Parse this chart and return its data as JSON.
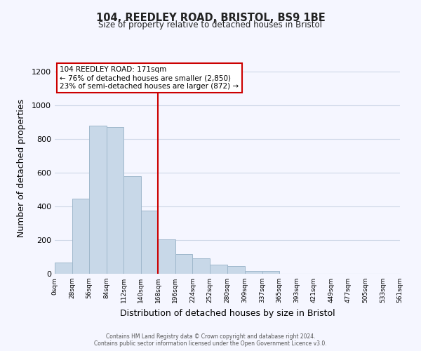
{
  "title": "104, REEDLEY ROAD, BRISTOL, BS9 1BE",
  "subtitle": "Size of property relative to detached houses in Bristol",
  "xlabel": "Distribution of detached houses by size in Bristol",
  "ylabel": "Number of detached properties",
  "bar_color": "#c8d8e8",
  "bar_edge_color": "#a0b8cc",
  "property_line_x": 168,
  "bin_edges": [
    0,
    28,
    56,
    84,
    112,
    140,
    168,
    196,
    224,
    252,
    280,
    309,
    337,
    365,
    393,
    421,
    449,
    477,
    505,
    533,
    561
  ],
  "bar_heights": [
    65,
    445,
    880,
    870,
    580,
    375,
    205,
    115,
    90,
    55,
    45,
    18,
    15,
    0,
    0,
    0,
    0,
    0,
    0,
    0
  ],
  "tick_labels": [
    "0sqm",
    "28sqm",
    "56sqm",
    "84sqm",
    "112sqm",
    "140sqm",
    "168sqm",
    "196sqm",
    "224sqm",
    "252sqm",
    "280sqm",
    "309sqm",
    "337sqm",
    "365sqm",
    "393sqm",
    "421sqm",
    "449sqm",
    "477sqm",
    "505sqm",
    "533sqm",
    "561sqm"
  ],
  "ylim": [
    0,
    1250
  ],
  "yticks": [
    0,
    200,
    400,
    600,
    800,
    1000,
    1200
  ],
  "annotation_text": "104 REEDLEY ROAD: 171sqm\n← 76% of detached houses are smaller (2,850)\n23% of semi-detached houses are larger (872) →",
  "annotation_box_color": "white",
  "annotation_box_edge": "#cc0000",
  "footer_line1": "Contains HM Land Registry data © Crown copyright and database right 2024.",
  "footer_line2": "Contains public sector information licensed under the Open Government Licence v3.0.",
  "background_color": "#f5f6ff",
  "grid_color": "#d0d8e8"
}
